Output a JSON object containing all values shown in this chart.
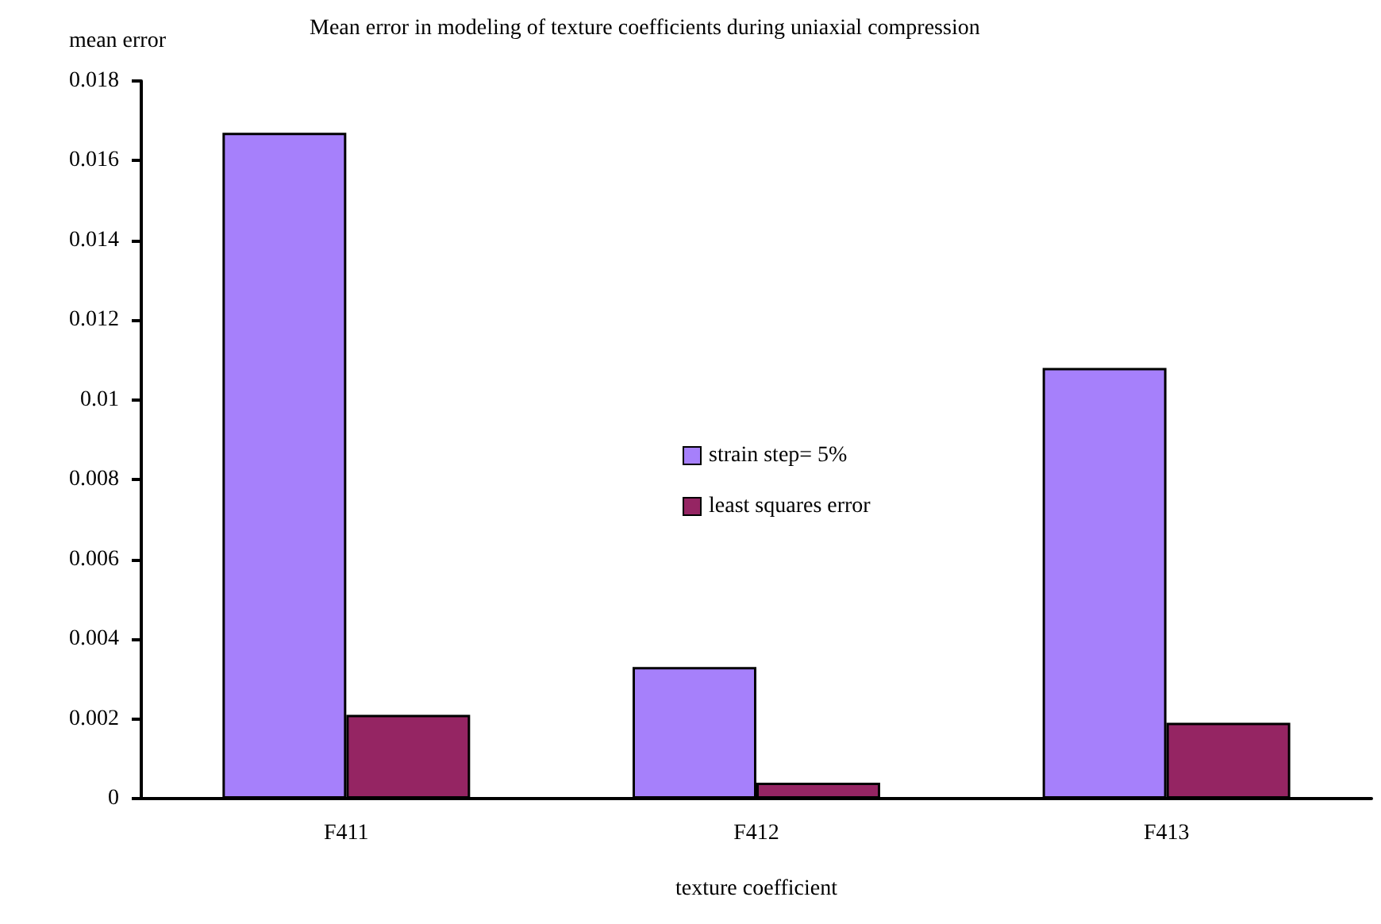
{
  "chart_data": {
    "type": "bar",
    "title": "Mean error in modeling of texture coefficients during uniaxial compression",
    "xlabel": "texture coefficient",
    "ylabel": "mean error",
    "categories": [
      "F411",
      "F412",
      "F413"
    ],
    "series": [
      {
        "name": "strain step= 5%",
        "color": "#a680fb",
        "values": [
          0.0167,
          0.0033,
          0.0108
        ]
      },
      {
        "name": "least squares error",
        "color": "#952563",
        "values": [
          0.0021,
          0.0004,
          0.0019
        ]
      }
    ],
    "ylim": [
      0,
      0.018
    ],
    "yticks": [
      0,
      0.002,
      0.004,
      0.006,
      0.008,
      0.01,
      0.012,
      0.014,
      0.016,
      0.018
    ],
    "grid": false,
    "legend": "center"
  }
}
